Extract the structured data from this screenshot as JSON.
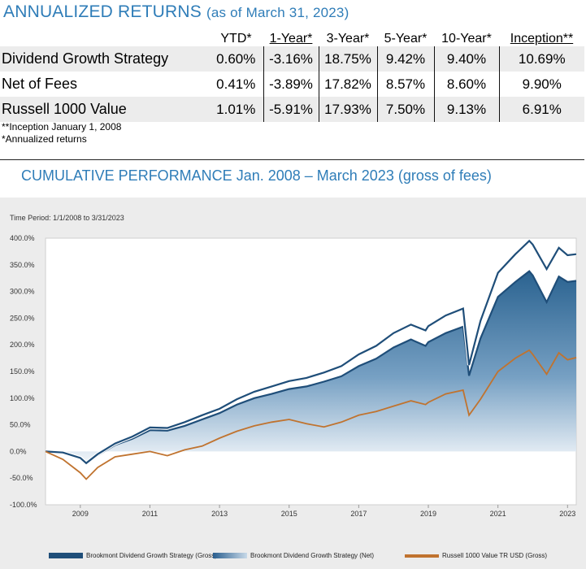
{
  "returns": {
    "title": "ANNUALIZED RETURNS",
    "subtitle": "(as of March 31, 2023)",
    "columns": [
      "YTD*",
      "1-Year*",
      "3-Year*",
      "5-Year*",
      "10-Year*",
      "Inception**"
    ],
    "rows": [
      {
        "label": "Dividend Growth Strategy",
        "values": [
          "0.60%",
          "-3.16%",
          "18.75%",
          "9.42%",
          "9.40%",
          "10.69%"
        ]
      },
      {
        "label": "Net of Fees",
        "values": [
          "0.41%",
          "-3.89%",
          "17.82%",
          "8.57%",
          "8.60%",
          "9.90%"
        ]
      },
      {
        "label": "Russell 1000 Value",
        "values": [
          "1.01%",
          "-5.91%",
          "17.93%",
          "7.50%",
          "9.13%",
          "6.91%"
        ]
      }
    ],
    "notes": [
      "**Inception January 1, 2008",
      "*Annualized returns"
    ]
  },
  "chart_title": "CUMULATIVE PERFORMANCE Jan. 2008 – March 2023 (gross of fees)",
  "time_period": "Time Period: 1/1/2008 to 3/31/2023",
  "colors": {
    "accent": "#2f7db8",
    "gross": "#1f4e79",
    "net": "#4e7fa8",
    "russell": "#c0732f"
  },
  "chart_data": {
    "type": "line",
    "ylim": [
      -100,
      400
    ],
    "yticks": [
      400,
      350,
      300,
      250,
      200,
      150,
      100,
      50,
      0,
      -50,
      -100
    ],
    "ytick_labels": [
      "400.0%",
      "350.0%",
      "300.0%",
      "250.0%",
      "200.0%",
      "150.0%",
      "100.0%",
      "50.0%",
      "0.0%",
      "-50.0%",
      "-100.0%"
    ],
    "xlim": [
      2008.0,
      2023.25
    ],
    "xticks": [
      2009,
      2011,
      2013,
      2015,
      2017,
      2019,
      2021,
      2023
    ],
    "xtick_labels": [
      "2009",
      "2011",
      "2013",
      "2015",
      "2017",
      "2019",
      "2021",
      "2023"
    ],
    "grid": false,
    "legend_position": "bottom",
    "series": [
      {
        "name": "Brookmont Dividend Growth Strategy (Gross)",
        "style": "line",
        "x": [
          2008.0,
          2008.5,
          2009.0,
          2009.17,
          2009.5,
          2010.0,
          2010.5,
          2011.0,
          2011.5,
          2012.0,
          2012.5,
          2013.0,
          2013.5,
          2014.0,
          2014.5,
          2015.0,
          2015.5,
          2016.0,
          2016.5,
          2017.0,
          2017.5,
          2018.0,
          2018.5,
          2018.92,
          2019.0,
          2019.5,
          2020.0,
          2020.17,
          2020.5,
          2021.0,
          2021.5,
          2021.9,
          2022.0,
          2022.4,
          2022.75,
          2023.0,
          2023.25
        ],
        "y": [
          0,
          -2,
          -12,
          -22,
          -5,
          15,
          28,
          45,
          44,
          55,
          68,
          80,
          98,
          112,
          122,
          132,
          138,
          148,
          160,
          182,
          198,
          222,
          238,
          227,
          235,
          255,
          268,
          162,
          245,
          335,
          370,
          395,
          388,
          342,
          382,
          368,
          370
        ]
      },
      {
        "name": "Brookmont Dividend Growth Strategy (Net)",
        "style": "area",
        "x": [
          2008.0,
          2008.5,
          2009.0,
          2009.17,
          2009.5,
          2010.0,
          2010.5,
          2011.0,
          2011.5,
          2012.0,
          2012.5,
          2013.0,
          2013.5,
          2014.0,
          2014.5,
          2015.0,
          2015.5,
          2016.0,
          2016.5,
          2017.0,
          2017.5,
          2018.0,
          2018.5,
          2018.92,
          2019.0,
          2019.5,
          2020.0,
          2020.17,
          2020.5,
          2021.0,
          2021.5,
          2021.9,
          2022.0,
          2022.4,
          2022.75,
          2023.0,
          2023.25
        ],
        "y": [
          0,
          -3,
          -13,
          -23,
          -7,
          12,
          24,
          40,
          39,
          48,
          60,
          72,
          88,
          100,
          108,
          117,
          122,
          131,
          141,
          160,
          174,
          195,
          210,
          198,
          205,
          222,
          234,
          142,
          212,
          290,
          318,
          338,
          330,
          280,
          328,
          318,
          320
        ]
      },
      {
        "name": "Russell 1000 Value TR USD (Gross)",
        "style": "line",
        "x": [
          2008.0,
          2008.5,
          2009.0,
          2009.17,
          2009.5,
          2010.0,
          2010.5,
          2011.0,
          2011.5,
          2012.0,
          2012.5,
          2013.0,
          2013.5,
          2014.0,
          2014.5,
          2015.0,
          2015.5,
          2016.0,
          2016.5,
          2017.0,
          2017.5,
          2018.0,
          2018.5,
          2018.92,
          2019.0,
          2019.5,
          2020.0,
          2020.17,
          2020.5,
          2021.0,
          2021.5,
          2021.9,
          2022.0,
          2022.4,
          2022.75,
          2023.0,
          2023.25
        ],
        "y": [
          0,
          -15,
          -40,
          -52,
          -30,
          -10,
          -5,
          0,
          -8,
          3,
          10,
          25,
          38,
          48,
          55,
          60,
          52,
          46,
          55,
          68,
          75,
          85,
          95,
          88,
          92,
          108,
          115,
          68,
          98,
          150,
          175,
          190,
          182,
          145,
          185,
          172,
          176
        ]
      }
    ]
  }
}
